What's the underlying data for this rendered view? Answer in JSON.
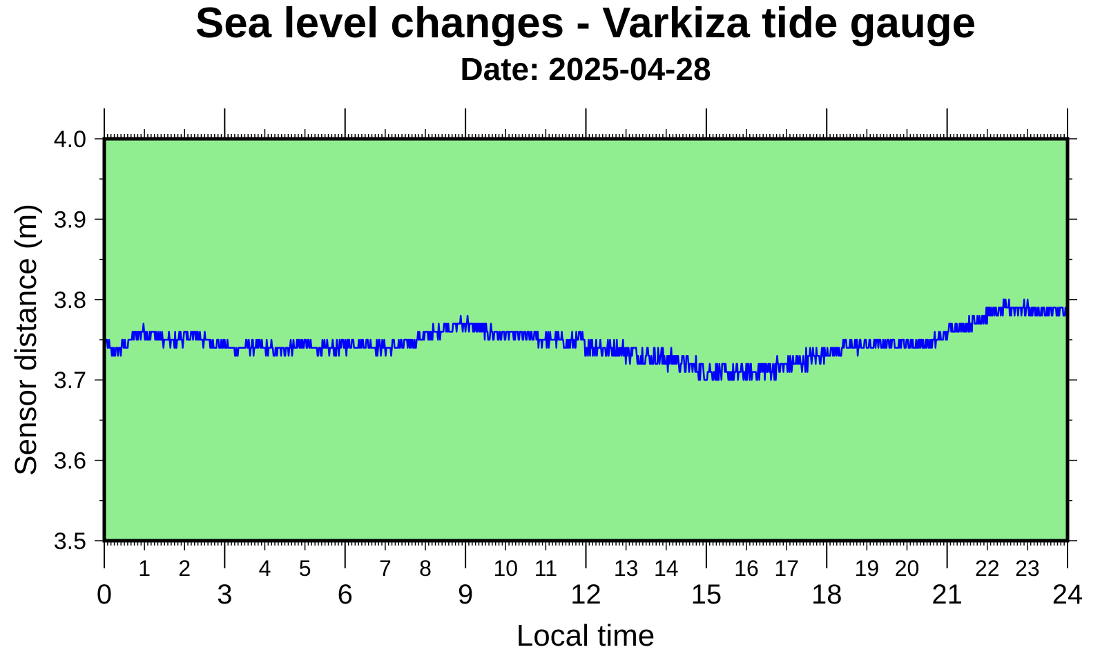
{
  "chart_data": {
    "type": "line",
    "title": "Sea level changes - Varkiza tide gauge",
    "subtitle": "Date: 2025-04-28",
    "xlabel": "Local time",
    "ylabel": "Sensor distance (m)",
    "xlim": [
      0,
      24
    ],
    "ylim": [
      3.5,
      4.0
    ],
    "x_major_ticks": [
      "0",
      "3",
      "6",
      "9",
      "12",
      "15",
      "18",
      "21",
      "24"
    ],
    "x_minor_labels": [
      "1",
      "2",
      "4",
      "5",
      "7",
      "8",
      "10",
      "11",
      "13",
      "14",
      "16",
      "17",
      "19",
      "20",
      "22",
      "23"
    ],
    "y_ticks": [
      "3.5",
      "3.6",
      "3.7",
      "3.8",
      "3.9",
      "4.0"
    ],
    "grid": false,
    "colors": {
      "plot_background": "#90ee90",
      "series_line": "#0000ff"
    },
    "series": [
      {
        "x": [
          0.0,
          0.25,
          0.5,
          0.75,
          1.0,
          1.25,
          1.5,
          1.75,
          2.0,
          2.25,
          2.5,
          2.75,
          3.0,
          3.25,
          3.5,
          3.75,
          4.0,
          4.25,
          4.5,
          4.75,
          5.0,
          5.25,
          5.5,
          5.75,
          6.0,
          6.25,
          6.5,
          6.75,
          7.0,
          7.25,
          7.5,
          7.75,
          8.0,
          8.25,
          8.5,
          8.75,
          9.0,
          9.25,
          9.5,
          9.75,
          10.0,
          10.25,
          10.5,
          10.75,
          11.0,
          11.25,
          11.5,
          11.75,
          12.0,
          12.25,
          12.5,
          12.75,
          13.0,
          13.25,
          13.5,
          13.75,
          14.0,
          14.25,
          14.5,
          14.75,
          15.0,
          15.25,
          15.5,
          15.75,
          16.0,
          16.25,
          16.5,
          16.75,
          17.0,
          17.25,
          17.5,
          17.75,
          18.0,
          18.25,
          18.5,
          18.75,
          19.0,
          19.25,
          19.5,
          19.75,
          20.0,
          20.25,
          20.5,
          20.75,
          21.0,
          21.25,
          21.5,
          21.75,
          22.0,
          22.25,
          22.5,
          22.75,
          23.0,
          23.25,
          23.5,
          23.75,
          24.0
        ],
        "values": [
          3.745,
          3.735,
          3.74,
          3.755,
          3.76,
          3.755,
          3.75,
          3.748,
          3.752,
          3.755,
          3.75,
          3.745,
          3.742,
          3.738,
          3.74,
          3.742,
          3.74,
          3.738,
          3.74,
          3.742,
          3.745,
          3.74,
          3.738,
          3.74,
          3.742,
          3.745,
          3.744,
          3.742,
          3.74,
          3.742,
          3.745,
          3.75,
          3.755,
          3.76,
          3.765,
          3.768,
          3.77,
          3.768,
          3.76,
          3.758,
          3.756,
          3.755,
          3.754,
          3.752,
          3.75,
          3.75,
          3.748,
          3.748,
          3.745,
          3.742,
          3.74,
          3.738,
          3.735,
          3.733,
          3.73,
          3.728,
          3.726,
          3.724,
          3.72,
          3.715,
          3.712,
          3.71,
          3.708,
          3.708,
          3.71,
          3.712,
          3.713,
          3.715,
          3.718,
          3.722,
          3.725,
          3.73,
          3.735,
          3.738,
          3.74,
          3.742,
          3.744,
          3.745,
          3.746,
          3.746,
          3.745,
          3.744,
          3.745,
          3.75,
          3.76,
          3.765,
          3.77,
          3.775,
          3.78,
          3.785,
          3.79,
          3.79,
          3.788,
          3.786,
          3.785,
          3.784,
          3.782
        ]
      }
    ]
  }
}
